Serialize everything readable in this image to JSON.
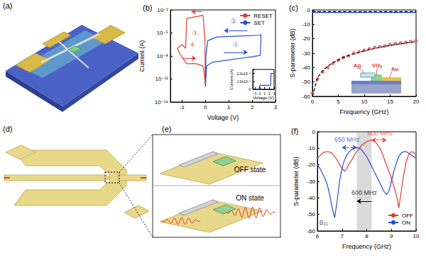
{
  "illustrations": [
    {
      "label": "(a)"
    },
    {
      "label": "(d)"
    },
    {
      "label": "(e)",
      "texts": [
        "OFF state",
        "ON state"
      ]
    }
  ],
  "chart_data": [
    {
      "type": "line",
      "title": "(b)",
      "x_label": "Voltage (V)",
      "y_label": "Current (A)",
      "log": "y",
      "grid": false,
      "xlim": [
        -1.5,
        3
      ],
      "xticks": [
        -1,
        0,
        1,
        2,
        3
      ],
      "ylim": [
        1e-14,
        0.01
      ],
      "yticks": [
        {
          "value": 1e-14,
          "label": "10⁻¹⁴"
        },
        {
          "value": 1e-11,
          "label": "10⁻¹¹"
        },
        {
          "value": 1e-08,
          "label": "10⁻⁸"
        },
        {
          "value": 1e-05,
          "label": "10⁻⁵"
        },
        {
          "value": 0.01,
          "label": "10⁻²"
        }
      ],
      "legend": "upper right",
      "series": [
        {
          "name": "RESET",
          "color": "#e03c31",
          "x": [
            0,
            -0.02,
            -0.1,
            -0.3,
            -0.6,
            -0.8,
            -0.85,
            -1,
            -1.2,
            -1.1,
            -0.8,
            -0.4,
            -0.1,
            -0.02,
            0
          ],
          "values": [
            1e-12,
            1e-06,
            0.002,
            0.0015,
            0.001,
            0.0008,
            1e-07,
            3e-07,
            1e-07,
            2e-08,
            1e-09,
            1e-09,
            5e-10,
            1e-11,
            1e-12
          ]
        },
        {
          "name": "SET",
          "color": "#2a4bd7",
          "x": [
            0,
            0.05,
            0.3,
            1,
            1.5,
            2,
            2.35,
            2.38,
            2.3,
            1.5,
            0.5,
            0.1,
            0.02,
            0
          ],
          "values": [
            1e-12,
            5e-10,
            1.5e-09,
            3e-09,
            5e-09,
            8e-09,
            1.2e-08,
            6e-06,
            5e-06,
            4e-06,
            3e-06,
            1e-06,
            1e-08,
            1e-12
          ]
        }
      ],
      "annotations": [
        {
          "text": "①",
          "x": 1.3,
          "y": 3e-07,
          "color": "#2a4bd7"
        },
        {
          "text": "②",
          "x": 1.2,
          "y": 0.0003,
          "color": "#2a4bd7"
        },
        {
          "text": "③",
          "x": -0.45,
          "y": 1e-05,
          "color": "#e03c31"
        },
        {
          "text": "④",
          "x": -0.55,
          "y": 3e-07,
          "color": "#e03c31"
        }
      ],
      "arrows": [
        {
          "from": [
            0.8,
            3e-08
          ],
          "to": [
            1.8,
            3e-08
          ],
          "color": "#2a4bd7",
          "marker": "arrow"
        },
        {
          "from": [
            1.8,
            2e-05
          ],
          "to": [
            0.8,
            2e-05
          ],
          "color": "#2a4bd7",
          "marker": "arrow"
        },
        {
          "from": [
            -0.15,
            0.006
          ],
          "to": [
            -0.6,
            0.006
          ],
          "color": "#e03c31",
          "marker": "arrow"
        },
        {
          "from": [
            -1.0,
            5e-09
          ],
          "to": [
            -0.4,
            5e-09
          ],
          "color": "#e03c31",
          "marker": "arrow"
        }
      ],
      "inset": {
        "type": "line",
        "x_label": "Voltage (V)",
        "y_label": "Current (A)",
        "grid": false,
        "xlim": [
          -1.5,
          3
        ],
        "xticks": [
          -1,
          0,
          1,
          2,
          3
        ],
        "ylim": [
          0,
          0.0025
        ],
        "yticks": [
          0,
          {
            "value": 0.001,
            "label": "1.0x10⁻³"
          },
          {
            "value": 0.002,
            "label": "2.0x10⁻³"
          }
        ],
        "series": [
          {
            "color": "#2a4bd7",
            "x": [
              -1.5,
              -0.2,
              0,
              2.3,
              2.35,
              3
            ],
            "values": [
              0,
              0,
              0.0005,
              0.0005,
              0.002,
              0.002
            ]
          }
        ]
      }
    },
    {
      "type": "line",
      "title": "(c)",
      "x_label": "Frequency (GHz)",
      "y_label": "S-parameter (dB)",
      "grid": false,
      "xlim": [
        0,
        20
      ],
      "xticks": [
        0,
        5,
        10,
        15,
        20
      ],
      "ylim": [
        -60,
        0
      ],
      "yticks": [
        -60,
        -50,
        -40,
        -30,
        -20,
        -10,
        0
      ],
      "x": [
        0,
        1,
        2,
        3,
        4,
        5,
        6,
        7,
        8,
        9,
        10,
        11,
        12,
        13,
        14,
        15,
        16,
        17,
        18,
        19,
        20
      ],
      "series": [
        {
          "color": "#2a4bd7",
          "line_style": "solid",
          "values": [
            -1.8,
            -1.8,
            -1.8,
            -1.8,
            -1.8,
            -1.8,
            -1.8,
            -1.8,
            -1.8,
            -1.8,
            -1.8,
            -1.8,
            -1.8,
            -1.8,
            -1.8,
            -1.8,
            -1.8,
            -1.8,
            -1.8,
            -1.8,
            -1.8
          ]
        },
        {
          "color": "#000000",
          "line_style": "dashed",
          "values": [
            -1.2,
            -1.2,
            -1.2,
            -1.2,
            -1.2,
            -1.2,
            -1.2,
            -1.2,
            -1.2,
            -1.2,
            -1.2,
            -1.2,
            -1.2,
            -1.2,
            -1.2,
            -1.2,
            -1.2,
            -1.2,
            -1.2,
            -1.2,
            -1.2
          ]
        },
        {
          "type": "scatter",
          "color": "#e05a5a",
          "marker": "circle",
          "values": [
            -58,
            -48,
            -43,
            -40,
            -37,
            -35,
            -33,
            -32,
            -30,
            -29,
            -28,
            -27,
            -26,
            -25.5,
            -25,
            -24,
            -23.5,
            -23,
            -22.5,
            -22,
            -21.5
          ]
        },
        {
          "color": "#000000",
          "line_style": "dashed",
          "values": [
            -60,
            -47,
            -42,
            -39,
            -36.5,
            -34.5,
            -33,
            -31.5,
            -30.5,
            -29.5,
            -28.5,
            -27.5,
            -26.8,
            -26,
            -25.3,
            -24.7,
            -24,
            -23.5,
            -23,
            -22.5,
            -22
          ]
        }
      ],
      "inset_labels": [
        "Ag",
        "VOₓ",
        "Au"
      ]
    },
    {
      "type": "line",
      "title": "(f)",
      "x_label": "Frequency (GHz)",
      "y_label": "S-parameter (dB)",
      "grid": false,
      "xlim": [
        6,
        10
      ],
      "xticks": [
        6,
        7,
        8,
        9,
        10
      ],
      "ylim": [
        -60,
        0
      ],
      "yticks": [
        -60,
        -50,
        -40,
        -30,
        -20,
        -10,
        0
      ],
      "legend": "lower right",
      "x": [
        6,
        6.1,
        6.2,
        6.3,
        6.4,
        6.5,
        6.6,
        6.7,
        6.8,
        6.9,
        7,
        7.1,
        7.2,
        7.3,
        7.4,
        7.5,
        7.6,
        7.7,
        7.8,
        7.9,
        8,
        8.1,
        8.2,
        8.3,
        8.4,
        8.5,
        8.6,
        8.7,
        8.8,
        8.9,
        9,
        9.1,
        9.2,
        9.3,
        9.4,
        9.5,
        9.6,
        9.7,
        9.8,
        9.9,
        10
      ],
      "series": [
        {
          "name": "OFF",
          "color": "#e03c31",
          "values": [
            -16,
            -14.5,
            -13,
            -12.3,
            -12,
            -12.3,
            -13,
            -15,
            -17,
            -20,
            -22,
            -24,
            -22,
            -19,
            -17,
            -14,
            -12,
            -10,
            -8,
            -7,
            -6,
            -5.5,
            -5,
            -5.5,
            -7,
            -9,
            -12,
            -16,
            -20,
            -24,
            -28,
            -33,
            -38,
            -46,
            -36,
            -26,
            -18,
            -14,
            -12,
            -12.5,
            -14
          ]
        },
        {
          "name": "ON",
          "color": "#2a4bd7",
          "values": [
            -20,
            -22,
            -25,
            -28,
            -32,
            -38,
            -46,
            -52,
            -42,
            -30,
            -22,
            -17,
            -14,
            -12,
            -10.5,
            -10,
            -9.5,
            -10,
            -11,
            -13,
            -15,
            -18,
            -21,
            -24,
            -27,
            -30,
            -33,
            -36,
            -38,
            -36,
            -30,
            -24,
            -19,
            -15,
            -13,
            -12,
            -12,
            -13,
            -14,
            -15,
            -16
          ]
        }
      ],
      "shaded_band": [
        7.6,
        8.2
      ],
      "annotations": [
        {
          "text": "650 MHz",
          "x": 7.2,
          "y": -4.5,
          "color": "#2a4bd7"
        },
        {
          "text": "600 MHz",
          "x": 8.55,
          "y": -1,
          "color": "#e03c31"
        },
        {
          "text": "600 MHz",
          "x": 7.9,
          "y": -37,
          "color": "#000000"
        },
        {
          "text": "S₂₁",
          "x": 6.25,
          "y": -55,
          "color": "#000000"
        }
      ],
      "arrows": [
        {
          "from": [
            7.0,
            -9.5
          ],
          "to": [
            7.6,
            -9.5
          ],
          "color": "#2a4bd7",
          "line_style": "dashed",
          "marker": "double-arrow"
        },
        {
          "from": [
            8.2,
            -5
          ],
          "to": [
            8.8,
            -5
          ],
          "color": "#e03c31",
          "line_style": "dashed",
          "marker": "double-arrow"
        },
        {
          "from": [
            8.2,
            -42
          ],
          "to": [
            7.6,
            -42
          ],
          "color": "#000000",
          "marker": "arrow"
        }
      ]
    }
  ]
}
